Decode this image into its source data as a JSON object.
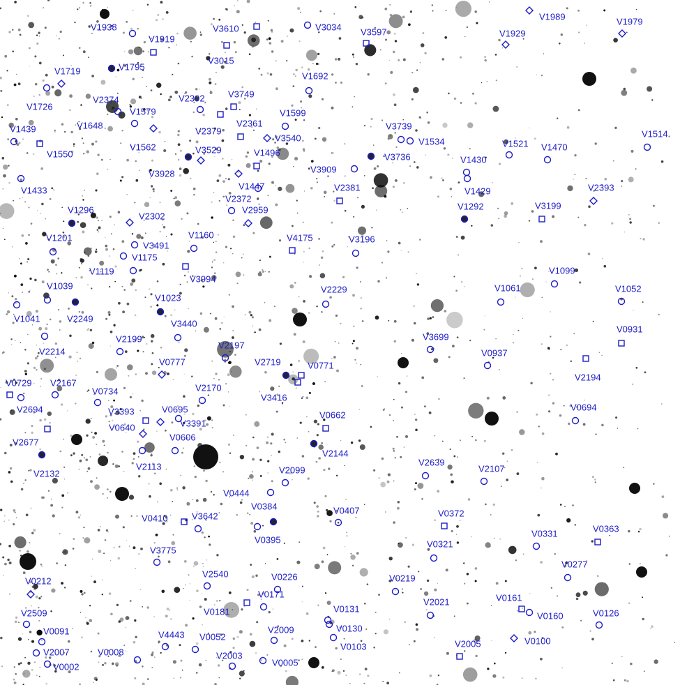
{
  "labels": [
    "V1938",
    "V1919",
    "V3610",
    "V3015",
    "V3034",
    "V3597",
    "V1989",
    "V1929",
    "V1979",
    "V1719",
    "V1795",
    "V1692",
    "V1726",
    "V2374",
    "V2392",
    "V3749",
    "V1579",
    "V1648",
    "V1599",
    "V2379",
    "V2361",
    "V3540",
    "V3739",
    "V1534",
    "V1439",
    "V1550",
    "V1562",
    "V3529",
    "V1496",
    "V3736",
    "V1521",
    "V1470",
    "V1514",
    "V1430",
    "V3928",
    "V3909",
    "V1433",
    "V1447",
    "V2381",
    "V1429",
    "V2372",
    "V2959",
    "V1292",
    "V3199",
    "V2393",
    "V1296",
    "V2302",
    "V1201",
    "V1160",
    "V3491",
    "V1175",
    "V4175",
    "V3196",
    "V1119",
    "V3994",
    "V1099",
    "V1039",
    "V1023",
    "V1061",
    "V1052",
    "V2229",
    "V1041",
    "V2249",
    "V3440",
    "V0931",
    "V2214",
    "V2199",
    "V2197",
    "V3699",
    "V0937",
    "V2194",
    "V0777",
    "V2719",
    "V0771",
    "V0729",
    "V2167",
    "V0734",
    "V2170",
    "V3416",
    "V2694",
    "V3393",
    "V0695",
    "V0694",
    "V0662",
    "V0640",
    "V3391",
    "V0606",
    "V2677",
    "V2144",
    "V2113",
    "V2132",
    "V2099",
    "V2639",
    "V2107",
    "V0444",
    "V0384",
    "V0407",
    "V0410",
    "V3642",
    "V0372",
    "V0363",
    "V0331",
    "V0395",
    "V0321",
    "V3775",
    "V0277",
    "V0212",
    "V2540",
    "V0226",
    "V0219",
    "V0171",
    "V2021",
    "V0161",
    "V0160",
    "V0126",
    "V0181",
    "V0131",
    "V2509",
    "V0130",
    "V0091",
    "V2009",
    "V4443",
    "V0052",
    "V0100",
    "V0103",
    "V2005",
    "V2007",
    "V0008",
    "V2003",
    "V0005",
    "V0002"
  ]
}
